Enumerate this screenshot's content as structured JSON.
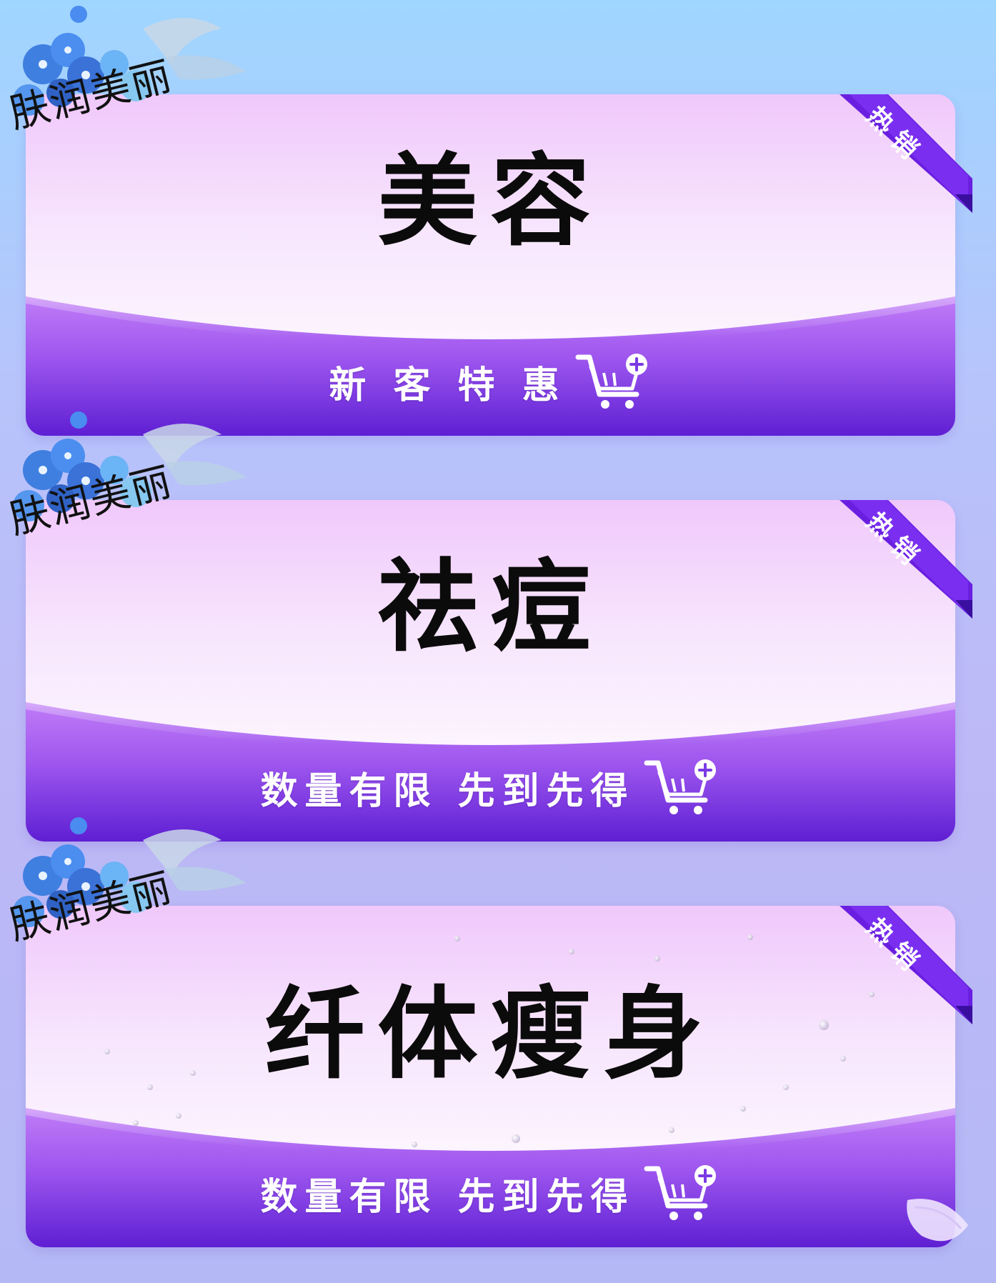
{
  "decoration": {
    "brand_text": "肤润美丽"
  },
  "cards": [
    {
      "title": "美容",
      "cta": "新 客 特 惠",
      "ribbon": "热销"
    },
    {
      "title": "祛痘",
      "cta": "数量有限 先到先得",
      "ribbon": "热销"
    },
    {
      "title": "纤体瘦身",
      "cta": "数量有限 先到先得",
      "ribbon": "热销"
    }
  ],
  "icons": {
    "cart": "cart-plus-icon",
    "flower": "flower-decoration-icon"
  },
  "colors": {
    "band": "#7433dd",
    "ribbon": "#6a1fe0",
    "card_top": "#f0c8fb"
  }
}
